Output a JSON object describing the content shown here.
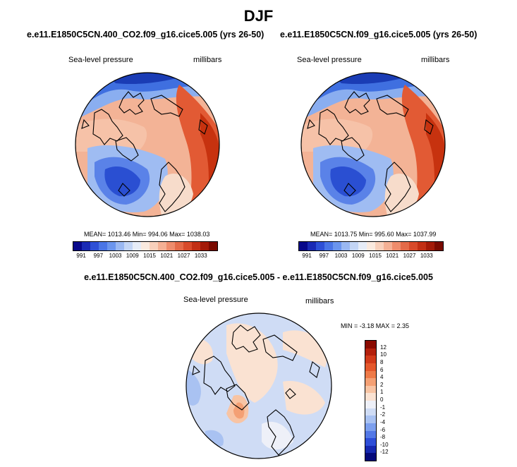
{
  "main_title": "DJF",
  "panels": [
    {
      "title": "e.e11.E1850C5CN.400_CO2.f09_g16.cice5.005 (yrs 26-50)",
      "var_label": "Sea-level pressure",
      "units": "millibars",
      "stats": "MEAN= 1013.46  Min= 994.06  Max= 1038.03"
    },
    {
      "title": "e.e11.E1850C5CN.f09_g16.cice5.005 (yrs 26-50)",
      "var_label": "Sea-level pressure",
      "units": "millibars",
      "stats": "MEAN= 1013.75  Min= 995.60  Max= 1037.99"
    }
  ],
  "abs_colorbar": {
    "ticks": [
      "991",
      "997",
      "1003",
      "1009",
      "1015",
      "1021",
      "1027",
      "1033"
    ],
    "colors": [
      "#08088a",
      "#1a2ab5",
      "#2e50d6",
      "#4a75e6",
      "#6b95ee",
      "#9ab8f2",
      "#c3d5f5",
      "#e6ecf7",
      "#faeadf",
      "#f8d0bb",
      "#f4b094",
      "#ee8c6c",
      "#e46a48",
      "#d84a2a",
      "#c22f14",
      "#a31a08",
      "#7a0a00"
    ]
  },
  "diff": {
    "title": "e.e11.E1850C5CN.400_CO2.f09_g16.cice5.005 - e.e11.E1850C5CN.f09_g16.cice5.005",
    "var_label": "Sea-level pressure",
    "units": "millibars",
    "stats": "MIN =  -3.18 MAX =   2.35",
    "ticks": [
      "12",
      "10",
      "8",
      "6",
      "4",
      "2",
      "1",
      "0",
      "-1",
      "-2",
      "-4",
      "-6",
      "-8",
      "-10",
      "-12"
    ],
    "colors": [
      "#8a0a00",
      "#b3200c",
      "#d13a1a",
      "#e4582c",
      "#ee7a48",
      "#f4a074",
      "#f8c4a4",
      "#fae2d2",
      "#eef0f8",
      "#cfdcf5",
      "#a9c2f2",
      "#7c9fee",
      "#5378e6",
      "#2e4ed8",
      "#1628b0",
      "#050a7a"
    ]
  }
}
